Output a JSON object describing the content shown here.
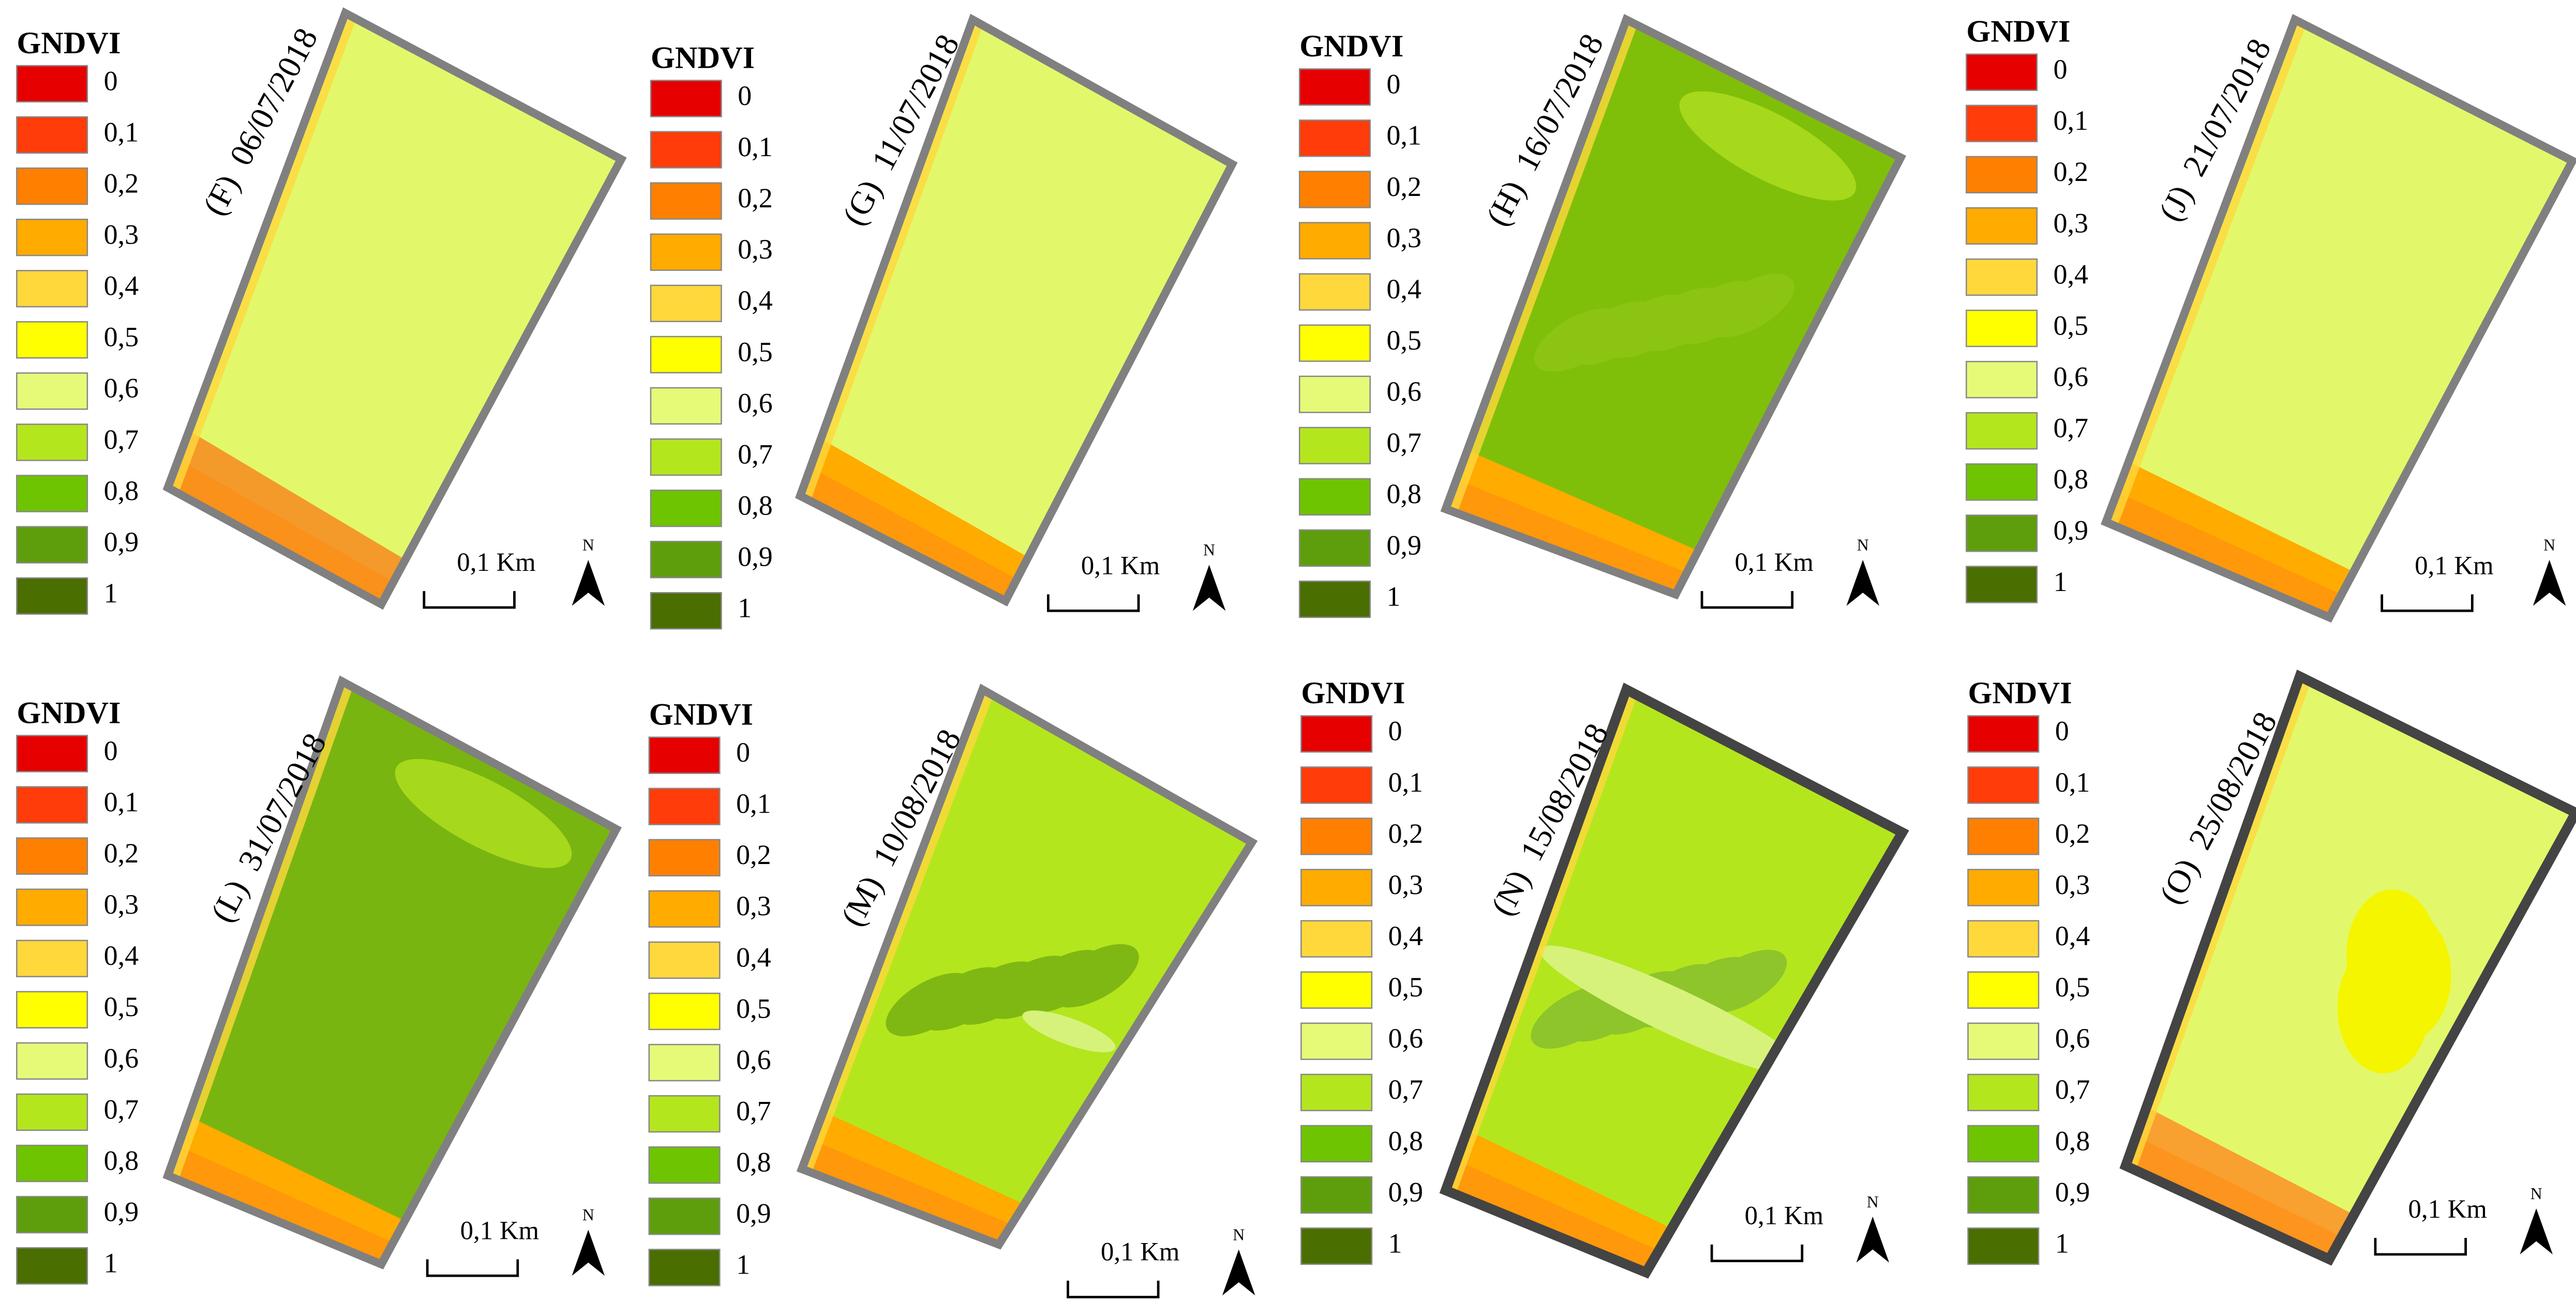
{
  "legend": {
    "title": "GNDVI",
    "items": [
      {
        "label": "0",
        "color": "#e60000"
      },
      {
        "label": "0,1",
        "color": "#ff3c0a"
      },
      {
        "label": "0,2",
        "color": "#ff8000"
      },
      {
        "label": "0,3",
        "color": "#ffab00"
      },
      {
        "label": "0,4",
        "color": "#ffd83c"
      },
      {
        "label": "0,5",
        "color": "#ffff00"
      },
      {
        "label": "0,6",
        "color": "#e6fa78"
      },
      {
        "label": "0,7",
        "color": "#b4e61e"
      },
      {
        "label": "0,8",
        "color": "#6ec400"
      },
      {
        "label": "0,9",
        "color": "#5e9e0c"
      },
      {
        "label": "1",
        "color": "#4a6e00"
      }
    ]
  },
  "scale_bar": "0,1 Km",
  "north": "N",
  "panels": [
    {
      "label": "(F)",
      "date": "06/07/2018",
      "fill": "#e2f86a"
    },
    {
      "label": "(G)",
      "date": "11/07/2018",
      "fill": "#e2f86a"
    },
    {
      "label": "(H)",
      "date": "16/07/2018",
      "fill": "#7fbf0a"
    },
    {
      "label": "(J)",
      "date": "21/07/2018",
      "fill": "#e2f86a"
    },
    {
      "label": "(L)",
      "date": "31/07/2018",
      "fill": "#79b510"
    },
    {
      "label": "(M)",
      "date": "10/08/2018",
      "fill": "#b4e61e"
    },
    {
      "label": "(N)",
      "date": "15/08/2018",
      "fill": "#b4e61e"
    },
    {
      "label": "(O)",
      "date": "25/08/2018",
      "fill": "#e2f86a"
    }
  ]
}
